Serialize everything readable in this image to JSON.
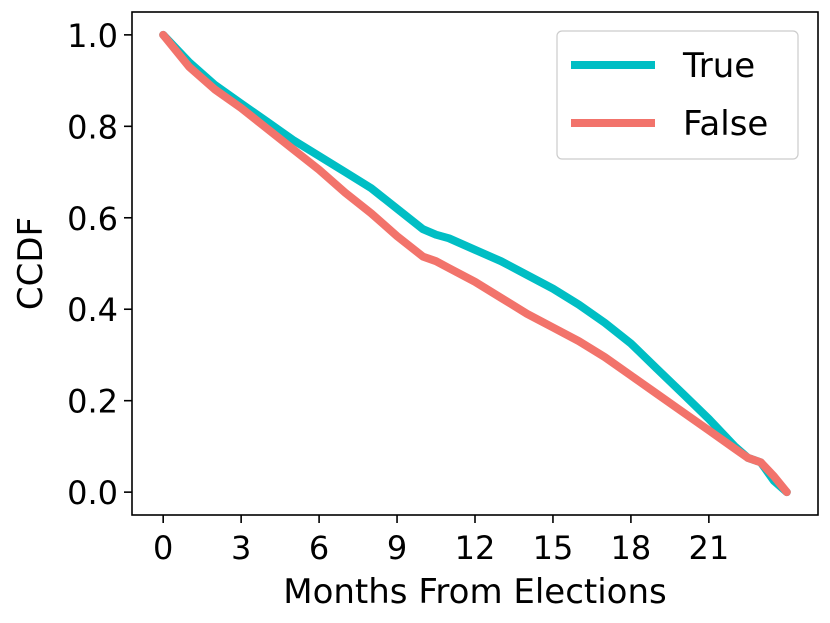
{
  "chart_data": {
    "type": "line",
    "title": "",
    "xlabel": "Months From Elections",
    "ylabel": "CCDF",
    "xlim": [
      -1.2,
      25.2
    ],
    "ylim": [
      -0.05,
      1.05
    ],
    "x_ticks": [
      0,
      3,
      6,
      9,
      12,
      15,
      18,
      21
    ],
    "y_ticks": [
      0.0,
      0.2,
      0.4,
      0.6,
      0.8,
      1.0
    ],
    "y_tick_labels": [
      "0.0",
      "0.2",
      "0.4",
      "0.6",
      "0.8",
      "1.0"
    ],
    "grid": false,
    "legend_position": "top-right",
    "series": [
      {
        "name": "True",
        "color": "#00bec4",
        "x": [
          0,
          1,
          2,
          3,
          4,
          5,
          6,
          7,
          8,
          9,
          10,
          10.5,
          11,
          12,
          13,
          14,
          15,
          16,
          17,
          18,
          19,
          20,
          21,
          22,
          22.5,
          23,
          23.5,
          24
        ],
        "y": [
          1.0,
          0.94,
          0.89,
          0.85,
          0.81,
          0.77,
          0.735,
          0.7,
          0.665,
          0.62,
          0.575,
          0.563,
          0.555,
          0.53,
          0.505,
          0.475,
          0.445,
          0.41,
          0.37,
          0.325,
          0.27,
          0.215,
          0.16,
          0.1,
          0.075,
          0.065,
          0.025,
          0.0
        ]
      },
      {
        "name": "False",
        "color": "#f2736b",
        "x": [
          0,
          1,
          2,
          3,
          4,
          5,
          6,
          7,
          8,
          9,
          10,
          10.5,
          11,
          12,
          13,
          14,
          15,
          16,
          17,
          18,
          19,
          20,
          21,
          22,
          22.5,
          23,
          23.5,
          24
        ],
        "y": [
          1.0,
          0.93,
          0.88,
          0.84,
          0.795,
          0.75,
          0.705,
          0.655,
          0.61,
          0.56,
          0.515,
          0.505,
          0.49,
          0.46,
          0.425,
          0.39,
          0.36,
          0.33,
          0.295,
          0.255,
          0.215,
          0.175,
          0.135,
          0.095,
          0.075,
          0.065,
          0.035,
          0.0
        ]
      }
    ]
  }
}
